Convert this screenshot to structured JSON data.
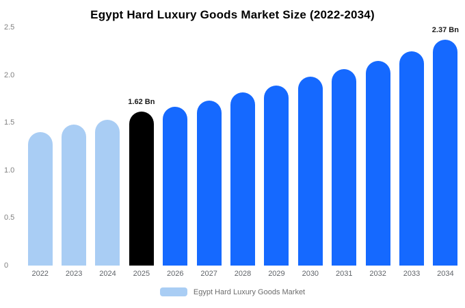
{
  "title": "Egypt Hard Luxury Goods Market Size (2022-2034)",
  "legend": {
    "label": "Egypt Hard Luxury Goods Market",
    "swatch_color": "#a9cdf4"
  },
  "colors": {
    "historical_bar": "#a9cdf4",
    "highlight_bar": "#000000",
    "forecast_bar": "#1569ff",
    "axis_text": "#808080",
    "category_text": "#5f6368"
  },
  "chart_data": {
    "type": "bar",
    "title": "Egypt Hard Luxury Goods Market Size (2022-2034)",
    "xlabel": "",
    "ylabel": "",
    "categories": [
      "2022",
      "2023",
      "2024",
      "2025",
      "2026",
      "2027",
      "2028",
      "2029",
      "2030",
      "2031",
      "2032",
      "2033",
      "2034"
    ],
    "values": [
      1.4,
      1.48,
      1.53,
      1.62,
      1.67,
      1.73,
      1.82,
      1.89,
      1.98,
      2.06,
      2.15,
      2.25,
      2.37
    ],
    "unit": "Bn",
    "bar_colors": [
      "#a9cdf4",
      "#a9cdf4",
      "#a9cdf4",
      "#000000",
      "#1569ff",
      "#1569ff",
      "#1569ff",
      "#1569ff",
      "#1569ff",
      "#1569ff",
      "#1569ff",
      "#1569ff",
      "#1569ff"
    ],
    "annotations": [
      {
        "index": 3,
        "text": "1.62 Bn"
      },
      {
        "index": 12,
        "text": "2.37 Bn"
      }
    ],
    "ylim": [
      0,
      2.5
    ],
    "yticks": [
      {
        "value": 0,
        "label": "0"
      },
      {
        "value": 0.5,
        "label": "0.5"
      },
      {
        "value": 1.0,
        "label": "1.0"
      },
      {
        "value": 1.5,
        "label": "1.5"
      },
      {
        "value": 2.0,
        "label": "2.0"
      },
      {
        "value": 2.5,
        "label": "2.5"
      }
    ],
    "grid": false,
    "legend_position": "bottom"
  }
}
